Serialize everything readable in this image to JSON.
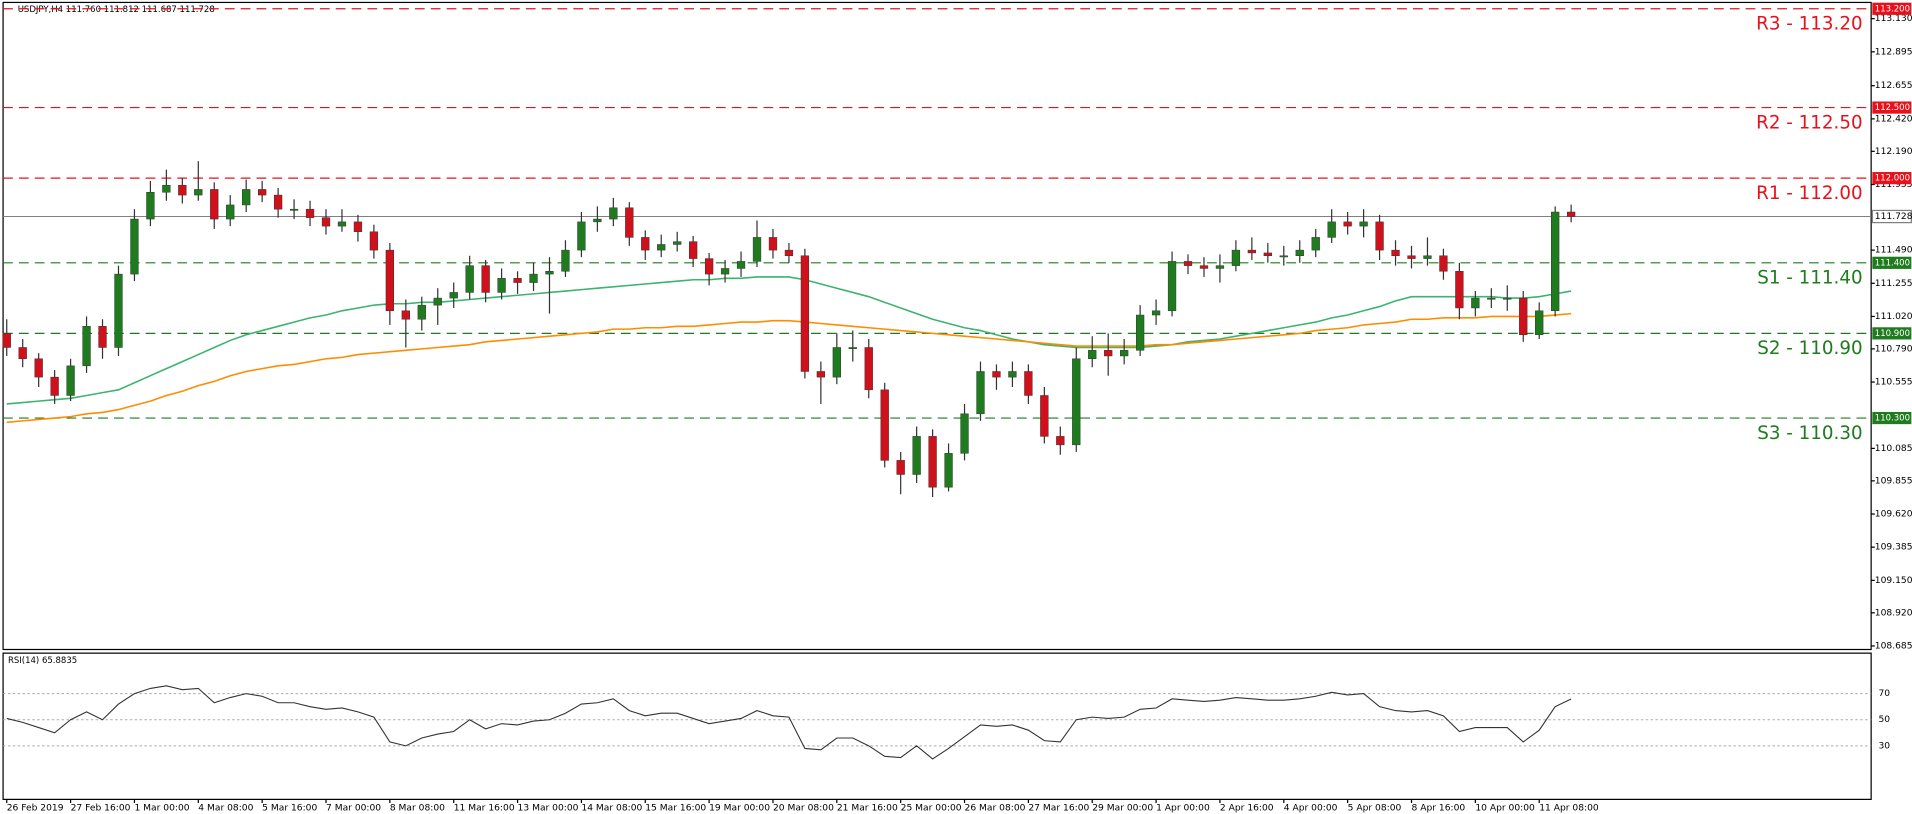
{
  "chart_data": {
    "type": "candlestick",
    "header": "USDJPY,H4  111.760 111.812 111.687 111.728",
    "categories": [
      "26 Feb 2019",
      null,
      null,
      null,
      "27 Feb 16:00",
      null,
      null,
      null,
      "1 Mar 00:00",
      null,
      null,
      null,
      "4 Mar 08:00",
      null,
      null,
      null,
      "5 Mar 16:00",
      null,
      null,
      null,
      "7 Mar 00:00",
      null,
      null,
      null,
      "8 Mar 08:00",
      null,
      null,
      null,
      "11 Mar 16:00",
      null,
      null,
      null,
      "13 Mar 00:00",
      null,
      null,
      null,
      "14 Mar 08:00",
      null,
      null,
      null,
      "15 Mar 16:00",
      null,
      null,
      null,
      "19 Mar 00:00",
      null,
      null,
      null,
      "20 Mar 08:00",
      null,
      null,
      null,
      "21 Mar 16:00",
      null,
      null,
      null,
      "25 Mar 00:00",
      null,
      null,
      null,
      "26 Mar 08:00",
      null,
      null,
      null,
      "27 Mar 16:00",
      null,
      null,
      null,
      "29 Mar 00:00",
      null,
      null,
      null,
      "1 Apr 00:00",
      null,
      null,
      null,
      "2 Apr 16:00",
      null,
      null,
      null,
      "4 Apr 00:00",
      null,
      null,
      null,
      "5 Apr 08:00",
      null,
      null,
      null,
      "8 Apr 16:00",
      null,
      null,
      null,
      "10 Apr 00:00",
      null,
      null,
      null,
      "11 Apr 08:00",
      null,
      null
    ],
    "ohlc": [
      [
        110.9,
        111.0,
        110.74,
        110.8
      ],
      [
        110.8,
        110.86,
        110.66,
        110.72
      ],
      [
        110.72,
        110.76,
        110.52,
        110.59
      ],
      [
        110.59,
        110.64,
        110.4,
        110.46
      ],
      [
        110.46,
        110.72,
        110.42,
        110.67
      ],
      [
        110.67,
        111.02,
        110.62,
        110.95
      ],
      [
        110.95,
        111.0,
        110.72,
        110.8
      ],
      [
        110.8,
        111.38,
        110.74,
        111.32
      ],
      [
        111.32,
        111.78,
        111.27,
        111.71
      ],
      [
        111.71,
        111.98,
        111.66,
        111.9
      ],
      [
        111.9,
        112.06,
        111.84,
        111.95
      ],
      [
        111.95,
        112.0,
        111.82,
        111.88
      ],
      [
        111.88,
        112.12,
        111.84,
        111.92
      ],
      [
        111.92,
        111.97,
        111.64,
        111.71
      ],
      [
        111.71,
        111.88,
        111.66,
        111.81
      ],
      [
        111.81,
        111.99,
        111.76,
        111.92
      ],
      [
        111.92,
        111.98,
        111.83,
        111.88
      ],
      [
        111.88,
        111.93,
        111.72,
        111.78
      ],
      [
        111.78,
        111.85,
        111.71,
        111.78
      ],
      [
        111.78,
        111.84,
        111.66,
        111.72
      ],
      [
        111.72,
        111.78,
        111.6,
        111.66
      ],
      [
        111.66,
        111.78,
        111.62,
        111.69
      ],
      [
        111.69,
        111.74,
        111.55,
        111.62
      ],
      [
        111.62,
        111.67,
        111.43,
        111.49
      ],
      [
        111.49,
        111.54,
        110.96,
        111.06
      ],
      [
        111.06,
        111.14,
        110.8,
        111.0
      ],
      [
        111.0,
        111.16,
        110.92,
        111.1
      ],
      [
        111.1,
        111.22,
        110.96,
        111.15
      ],
      [
        111.15,
        111.26,
        111.08,
        111.19
      ],
      [
        111.19,
        111.45,
        111.14,
        111.38
      ],
      [
        111.38,
        111.42,
        111.12,
        111.19
      ],
      [
        111.19,
        111.36,
        111.14,
        111.29
      ],
      [
        111.29,
        111.34,
        111.18,
        111.26
      ],
      [
        111.26,
        111.4,
        111.2,
        111.32
      ],
      [
        111.32,
        111.44,
        111.04,
        111.34
      ],
      [
        111.34,
        111.56,
        111.3,
        111.49
      ],
      [
        111.49,
        111.76,
        111.44,
        111.69
      ],
      [
        111.69,
        111.8,
        111.62,
        111.71
      ],
      [
        111.71,
        111.86,
        111.66,
        111.79
      ],
      [
        111.79,
        111.83,
        111.52,
        111.58
      ],
      [
        111.58,
        111.63,
        111.42,
        111.49
      ],
      [
        111.49,
        111.6,
        111.44,
        111.53
      ],
      [
        111.53,
        111.62,
        111.48,
        111.55
      ],
      [
        111.55,
        111.59,
        111.37,
        111.43
      ],
      [
        111.43,
        111.47,
        111.24,
        111.32
      ],
      [
        111.32,
        111.42,
        111.26,
        111.36
      ],
      [
        111.36,
        111.48,
        111.3,
        111.41
      ],
      [
        111.41,
        111.7,
        111.37,
        111.58
      ],
      [
        111.58,
        111.64,
        111.43,
        111.49
      ],
      [
        111.49,
        111.54,
        111.4,
        111.45
      ],
      [
        111.45,
        111.5,
        110.58,
        110.63
      ],
      [
        110.63,
        110.7,
        110.4,
        110.59
      ],
      [
        110.59,
        110.9,
        110.54,
        110.8
      ],
      [
        110.8,
        110.92,
        110.7,
        110.8
      ],
      [
        110.8,
        110.86,
        110.44,
        110.5
      ],
      [
        110.5,
        110.55,
        109.95,
        110.0
      ],
      [
        110.0,
        110.06,
        109.76,
        109.9
      ],
      [
        109.9,
        110.24,
        109.84,
        110.17
      ],
      [
        110.17,
        110.22,
        109.74,
        109.81
      ],
      [
        109.81,
        110.12,
        109.78,
        110.05
      ],
      [
        110.05,
        110.4,
        110.0,
        110.33
      ],
      [
        110.33,
        110.7,
        110.28,
        110.63
      ],
      [
        110.63,
        110.68,
        110.5,
        110.59
      ],
      [
        110.59,
        110.7,
        110.52,
        110.63
      ],
      [
        110.63,
        110.68,
        110.4,
        110.46
      ],
      [
        110.46,
        110.52,
        110.12,
        110.17
      ],
      [
        110.17,
        110.24,
        110.04,
        110.11
      ],
      [
        110.11,
        110.8,
        110.06,
        110.72
      ],
      [
        110.72,
        110.88,
        110.66,
        110.78
      ],
      [
        110.78,
        110.9,
        110.6,
        110.74
      ],
      [
        110.74,
        110.86,
        110.68,
        110.78
      ],
      [
        110.78,
        111.1,
        110.74,
        111.03
      ],
      [
        111.03,
        111.14,
        110.96,
        111.06
      ],
      [
        111.06,
        111.48,
        111.02,
        111.41
      ],
      [
        111.41,
        111.46,
        111.32,
        111.38
      ],
      [
        111.38,
        111.44,
        111.3,
        111.36
      ],
      [
        111.36,
        111.46,
        111.26,
        111.38
      ],
      [
        111.38,
        111.56,
        111.34,
        111.49
      ],
      [
        111.49,
        111.58,
        111.42,
        111.47
      ],
      [
        111.47,
        111.54,
        111.4,
        111.45
      ],
      [
        111.45,
        111.52,
        111.38,
        111.45
      ],
      [
        111.45,
        111.56,
        111.4,
        111.49
      ],
      [
        111.49,
        111.64,
        111.44,
        111.58
      ],
      [
        111.58,
        111.78,
        111.54,
        111.69
      ],
      [
        111.69,
        111.76,
        111.6,
        111.66
      ],
      [
        111.66,
        111.78,
        111.58,
        111.69
      ],
      [
        111.69,
        111.74,
        111.42,
        111.49
      ],
      [
        111.49,
        111.56,
        111.38,
        111.45
      ],
      [
        111.45,
        111.52,
        111.36,
        111.43
      ],
      [
        111.43,
        111.58,
        111.38,
        111.45
      ],
      [
        111.45,
        111.5,
        111.28,
        111.34
      ],
      [
        111.34,
        111.4,
        111.0,
        111.08
      ],
      [
        111.08,
        111.2,
        111.02,
        111.15
      ],
      [
        111.15,
        111.22,
        111.08,
        111.15
      ],
      [
        111.15,
        111.24,
        111.06,
        111.15
      ],
      [
        111.15,
        111.2,
        110.84,
        110.89
      ],
      [
        110.89,
        111.12,
        110.86,
        111.06
      ],
      [
        111.06,
        111.8,
        111.02,
        111.76
      ],
      [
        111.76,
        111.812,
        111.687,
        111.728
      ]
    ],
    "bull_color": "#1e7b1e",
    "bear_color": "#d0101a",
    "wick_color": "#333333",
    "moving_averages": [
      {
        "color": "#3cb371",
        "values": [
          110.4,
          110.41,
          110.42,
          110.43,
          110.44,
          110.46,
          110.48,
          110.5,
          110.55,
          110.6,
          110.65,
          110.7,
          110.75,
          110.8,
          110.85,
          110.89,
          110.92,
          110.95,
          110.98,
          111.01,
          111.03,
          111.06,
          111.08,
          111.1,
          111.11,
          111.11,
          111.12,
          111.12,
          111.13,
          111.14,
          111.15,
          111.16,
          111.17,
          111.18,
          111.19,
          111.2,
          111.21,
          111.22,
          111.23,
          111.24,
          111.25,
          111.26,
          111.27,
          111.28,
          111.28,
          111.29,
          111.29,
          111.3,
          111.3,
          111.3,
          111.28,
          111.25,
          111.22,
          111.19,
          111.16,
          111.12,
          111.08,
          111.04,
          111.0,
          110.97,
          110.94,
          110.92,
          110.89,
          110.86,
          110.84,
          110.82,
          110.81,
          110.8,
          110.8,
          110.8,
          110.8,
          110.8,
          110.81,
          110.82,
          110.84,
          110.85,
          110.86,
          110.88,
          110.9,
          110.92,
          110.94,
          110.96,
          110.98,
          111.01,
          111.03,
          111.06,
          111.09,
          111.13,
          111.16,
          111.16,
          111.16,
          111.16,
          111.16,
          111.16,
          111.15,
          111.15,
          111.16,
          111.18,
          111.2
        ]
      },
      {
        "color": "#ff8c00",
        "values": [
          110.27,
          110.28,
          110.29,
          110.3,
          110.31,
          110.33,
          110.34,
          110.36,
          110.39,
          110.42,
          110.46,
          110.49,
          110.53,
          110.56,
          110.6,
          110.63,
          110.65,
          110.67,
          110.68,
          110.7,
          110.72,
          110.73,
          110.75,
          110.76,
          110.77,
          110.78,
          110.79,
          110.8,
          110.81,
          110.82,
          110.84,
          110.85,
          110.86,
          110.87,
          110.88,
          110.89,
          110.9,
          110.91,
          110.93,
          110.93,
          110.94,
          110.94,
          110.95,
          110.95,
          110.96,
          110.97,
          110.98,
          110.98,
          110.99,
          110.99,
          110.98,
          110.97,
          110.96,
          110.95,
          110.94,
          110.93,
          110.92,
          110.91,
          110.9,
          110.89,
          110.88,
          110.87,
          110.86,
          110.85,
          110.84,
          110.83,
          110.82,
          110.81,
          110.81,
          110.81,
          110.81,
          110.81,
          110.82,
          110.82,
          110.83,
          110.84,
          110.85,
          110.86,
          110.87,
          110.88,
          110.89,
          110.9,
          110.92,
          110.93,
          110.94,
          110.96,
          110.97,
          110.98,
          111.0,
          111.0,
          111.01,
          111.01,
          111.01,
          111.02,
          111.02,
          111.02,
          111.02,
          111.03,
          111.04
        ]
      }
    ],
    "levels": [
      {
        "label": "R3 - 113.20",
        "value": 113.2,
        "tag": "113.200",
        "color": "#e8101a"
      },
      {
        "label": "R2 - 112.50",
        "value": 112.5,
        "tag": "112.500",
        "color": "#e8101a"
      },
      {
        "label": "R1 - 112.00",
        "value": 112.0,
        "tag": "112.000",
        "color": "#e8101a"
      },
      {
        "label": "S1 - 111.40",
        "value": 111.4,
        "tag": "111.400",
        "color": "#1e7b1e"
      },
      {
        "label": "S2 - 110.90",
        "value": 110.9,
        "tag": "110.900",
        "color": "#1e7b1e"
      },
      {
        "label": "S3 - 110.30",
        "value": 110.3,
        "tag": "110.300",
        "color": "#1e7b1e"
      }
    ],
    "current": {
      "value": 111.728,
      "tag": "111.728",
      "color": "#808080"
    },
    "ylim": [
      108.66,
      113.245
    ],
    "yticks": [
      {
        "value": 113.13,
        "label": "113.130"
      },
      112.895,
      112.655,
      {
        "value": 112.42,
        "label": "112.420"
      },
      {
        "value": 112.19,
        "label": "112.190"
      },
      111.955,
      {
        "value": 111.49,
        "label": "111.490"
      },
      111.255,
      {
        "value": 111.02,
        "label": "111.020"
      },
      {
        "value": 110.79,
        "label": "110.790"
      },
      110.555,
      110.085,
      109.855,
      {
        "value": 109.62,
        "label": "109.620"
      },
      109.385,
      {
        "value": 109.15,
        "label": "109.150"
      },
      {
        "value": 108.92,
        "label": "108.920"
      },
      108.685
    ],
    "rsi": {
      "label": "RSI(14) 65.8835",
      "color": "#333333",
      "ylim": [
        -11,
        101
      ],
      "yticks": [
        70,
        50,
        30
      ],
      "grid": true,
      "values": [
        51,
        48,
        44,
        40,
        50,
        56,
        50,
        62,
        70,
        74,
        76,
        73,
        74,
        63,
        67,
        70,
        68,
        63,
        63,
        60,
        58,
        59,
        56,
        52,
        33,
        30,
        36,
        39,
        41,
        50,
        43,
        47,
        46,
        49,
        50,
        55,
        62,
        63,
        66,
        57,
        53,
        55,
        55,
        51,
        47,
        49,
        51,
        57,
        53,
        52,
        28,
        27,
        36,
        36,
        30,
        22,
        21,
        30,
        20,
        28,
        37,
        46,
        45,
        46,
        42,
        34,
        33,
        50,
        52,
        51,
        52,
        58,
        59,
        66,
        65,
        64,
        65,
        67,
        66,
        65,
        65,
        66,
        68,
        71,
        69,
        70,
        60,
        57,
        56,
        57,
        53,
        41,
        44,
        44,
        44,
        33,
        42,
        60,
        65.8835
      ]
    }
  }
}
